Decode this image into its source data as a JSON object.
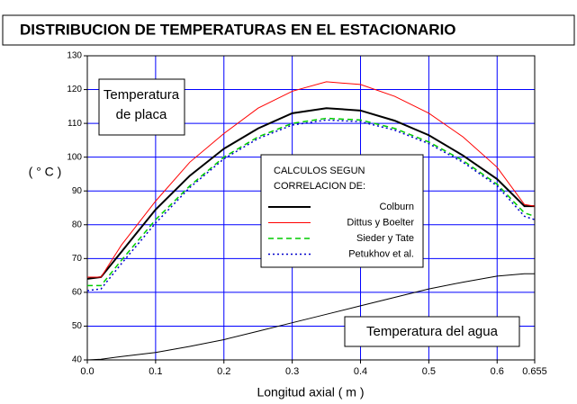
{
  "chart_data": {
    "type": "line",
    "title": "DISTRIBUCION DE TEMPERATURAS EN EL ESTACIONARIO",
    "x_label": "Longitud axial ( m )",
    "y_label": "( ° C )",
    "legend_title": [
      "CALCULOS SEGUN",
      "CORRELACION DE:"
    ],
    "annotations": [
      [
        "Temperatura",
        "de placa"
      ],
      [
        "Temperatura del agua"
      ]
    ],
    "x": [
      0,
      0.02,
      0.05,
      0.1,
      0.15,
      0.2,
      0.25,
      0.3,
      0.35,
      0.4,
      0.45,
      0.5,
      0.55,
      0.6,
      0.64,
      0.655
    ],
    "series": [
      {
        "name": "Colburn",
        "color": "#000000",
        "values": [
          64,
          64.5,
          72,
          84.5,
          94.5,
          102.5,
          108.5,
          113,
          114.5,
          113.8,
          110.8,
          106.5,
          100.5,
          93.5,
          85.5,
          85.5
        ]
      },
      {
        "name": "Dittus y Boelter",
        "color": "#ff0000",
        "values": [
          64.5,
          64.5,
          74,
          87,
          98.5,
          107,
          114.5,
          119.5,
          122.3,
          121.5,
          118,
          113,
          106,
          97,
          86,
          85.5
        ]
      },
      {
        "name": "Sieder y Tate",
        "color": "#00cc00",
        "values": [
          62,
          62,
          69.5,
          81.5,
          91.5,
          100,
          106,
          110,
          111.5,
          111,
          108.5,
          104.5,
          99,
          92,
          83.5,
          82.5
        ]
      },
      {
        "name": "Petukhov et al.",
        "color": "#0000cc",
        "values": [
          60.5,
          61,
          68.5,
          80.5,
          91,
          99.5,
          105.5,
          109.5,
          111,
          110.5,
          108,
          104,
          98.5,
          91.5,
          82.5,
          81.5
        ]
      },
      {
        "color": "#000000",
        "values": [
          40,
          40.2,
          41,
          42.2,
          44,
          46,
          48.5,
          51,
          53.5,
          56,
          58.5,
          61,
          63,
          64.8,
          65.5,
          65.5
        ]
      }
    ],
    "xlim": [
      0,
      0.655
    ],
    "xticks": [
      {
        "value": 0,
        "label": "0.0"
      },
      0.1,
      0.2,
      0.3,
      0.4,
      0.5,
      0.6,
      0.655
    ],
    "ylim": [
      40,
      130
    ],
    "yticks": [
      40,
      50,
      60,
      70,
      80,
      90,
      100,
      110,
      120,
      130
    ],
    "grid": true
  }
}
